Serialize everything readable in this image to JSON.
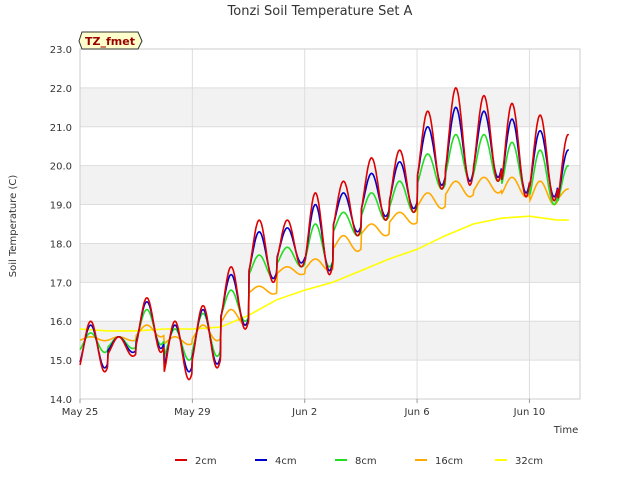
{
  "chart_data": {
    "type": "line",
    "title": "Tonzi Soil Temperature Set A",
    "xlabel": "Time",
    "ylabel": "Soil Temperature (C)",
    "ylim": [
      14.0,
      23.0
    ],
    "yticks": [
      "14.0",
      "15.0",
      "16.0",
      "17.0",
      "18.0",
      "19.0",
      "20.0",
      "21.0",
      "22.0",
      "23.0"
    ],
    "xlim_days": [
      0,
      17.8
    ],
    "xticks": [
      {
        "label": "May 25",
        "day": 0
      },
      {
        "label": "May 29",
        "day": 4
      },
      {
        "label": "Jun 2",
        "day": 8
      },
      {
        "label": "Jun 6",
        "day": 12
      },
      {
        "label": "Jun 10",
        "day": 16
      }
    ],
    "annotation": "TZ_fmet",
    "legend_position": "bottom",
    "grid": true,
    "series": [
      {
        "name": "2cm",
        "color": "#dd0000",
        "daily_min": [
          14.7,
          15.1,
          15.2,
          14.5,
          14.8,
          15.8,
          17.0,
          17.4,
          17.2,
          18.2,
          18.6,
          18.8,
          19.4,
          19.5,
          19.6,
          19.2,
          19.1,
          18.8
        ],
        "daily_max": [
          16.0,
          15.6,
          16.6,
          16.0,
          16.4,
          17.4,
          18.6,
          18.6,
          19.3,
          19.6,
          20.2,
          20.4,
          21.4,
          22.0,
          21.8,
          21.6,
          21.3,
          20.8
        ]
      },
      {
        "name": "4cm",
        "color": "#0000cc",
        "daily_min": [
          14.8,
          15.2,
          15.3,
          14.7,
          14.9,
          15.9,
          17.1,
          17.5,
          17.3,
          18.3,
          18.7,
          18.9,
          19.5,
          19.6,
          19.7,
          19.3,
          19.2,
          18.9
        ],
        "daily_max": [
          15.9,
          15.6,
          16.5,
          15.9,
          16.3,
          17.2,
          18.3,
          18.4,
          19.0,
          19.3,
          19.8,
          20.1,
          21.0,
          21.5,
          21.4,
          21.2,
          20.9,
          20.4
        ]
      },
      {
        "name": "8cm",
        "color": "#22dd22",
        "daily_min": [
          15.2,
          15.3,
          15.4,
          15.0,
          15.1,
          16.0,
          17.1,
          17.4,
          17.4,
          18.2,
          18.6,
          18.8,
          19.4,
          19.6,
          19.6,
          19.3,
          19.0,
          18.9
        ],
        "daily_max": [
          15.7,
          15.6,
          16.3,
          15.8,
          16.2,
          16.8,
          17.7,
          17.9,
          18.5,
          18.8,
          19.3,
          19.6,
          20.3,
          20.8,
          20.8,
          20.6,
          20.4,
          20.0
        ]
      },
      {
        "name": "16cm",
        "color": "#ffaa00",
        "daily_min": [
          15.5,
          15.5,
          15.6,
          15.4,
          15.5,
          15.9,
          16.7,
          17.2,
          17.3,
          17.8,
          18.2,
          18.5,
          18.9,
          19.2,
          19.3,
          19.2,
          19.0,
          19.1
        ],
        "daily_max": [
          15.6,
          15.6,
          15.9,
          15.6,
          15.9,
          16.3,
          16.9,
          17.4,
          17.6,
          18.2,
          18.5,
          18.8,
          19.3,
          19.6,
          19.7,
          19.7,
          19.6,
          19.4
        ]
      },
      {
        "name": "32cm",
        "color": "#ffff00",
        "points": [
          [
            0,
            15.8
          ],
          [
            1,
            15.75
          ],
          [
            2,
            15.75
          ],
          [
            3,
            15.8
          ],
          [
            4,
            15.8
          ],
          [
            5,
            15.85
          ],
          [
            6,
            16.15
          ],
          [
            7,
            16.55
          ],
          [
            8,
            16.8
          ],
          [
            9,
            17.0
          ],
          [
            10,
            17.3
          ],
          [
            11,
            17.6
          ],
          [
            12,
            17.85
          ],
          [
            13,
            18.2
          ],
          [
            14,
            18.5
          ],
          [
            15,
            18.65
          ],
          [
            16,
            18.7
          ],
          [
            17,
            18.6
          ],
          [
            17.4,
            18.6
          ]
        ]
      }
    ]
  }
}
